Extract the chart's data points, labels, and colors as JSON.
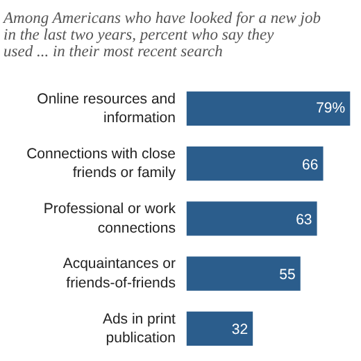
{
  "chart_data": {
    "type": "bar",
    "orientation": "horizontal",
    "title": "Among Americans who have looked for a new job in the last two years, percent who say they used ... in their most recent search",
    "categories": [
      "Online resources and information",
      "Connections with close friends or family",
      "Professional or work connections",
      "Acquaintances or friends-of-friends",
      "Ads in print publication"
    ],
    "values": [
      79,
      66,
      63,
      55,
      32
    ],
    "value_labels": [
      "79%",
      "66",
      "63",
      "55",
      "32"
    ],
    "color": "#2b5d8c"
  }
}
